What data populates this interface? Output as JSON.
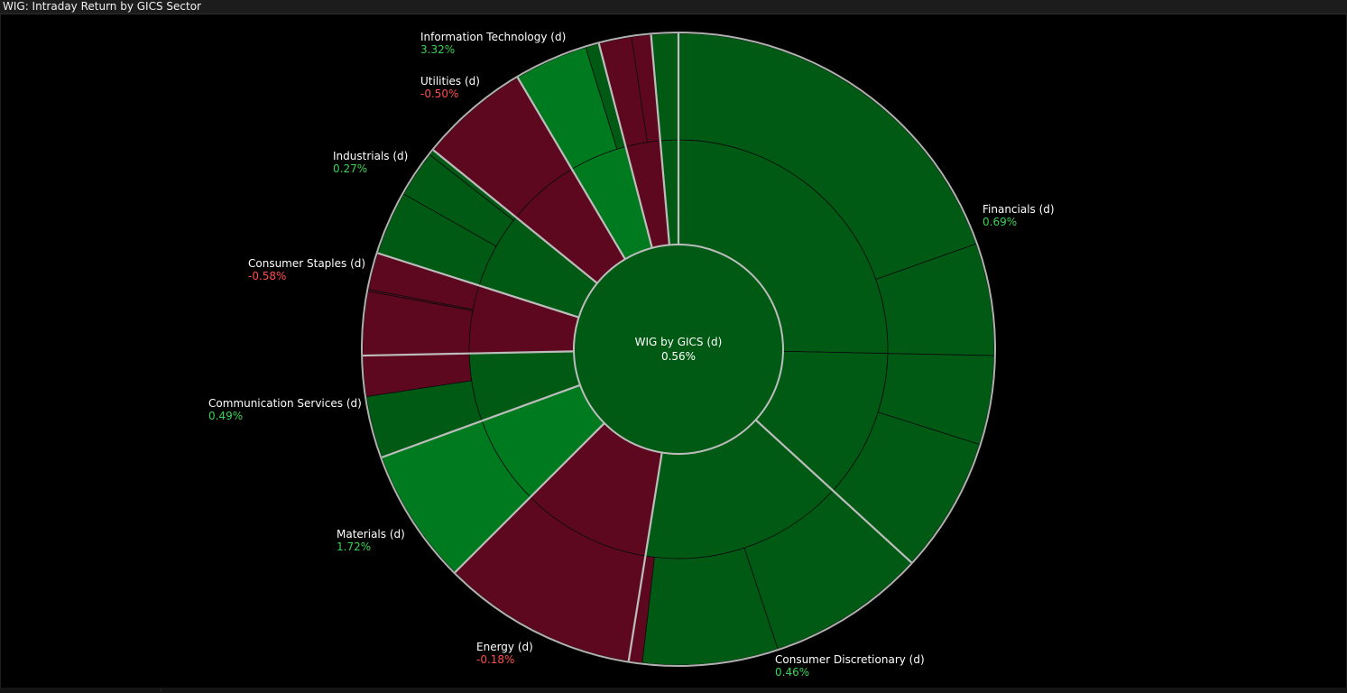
{
  "window": {
    "title": "WIG: Intraday Return by GICS Sector"
  },
  "colors": {
    "positive": "#005a14",
    "positive_strong": "#007a1e",
    "negative": "#5e0820",
    "positive_text": "#39d353",
    "negative_text": "#ff4d4d",
    "center_text": "#ffffff"
  },
  "chart_data": {
    "type": "sunburst",
    "title": "WIG: Intraday Return by GICS Sector",
    "center": {
      "label": "WIG by GICS (d)",
      "value": "0.56%",
      "return": 0.56
    },
    "sectors": [
      {
        "name": "Financials (d)",
        "value_text": "0.69%",
        "return": 0.69,
        "weight": 37.2,
        "mid": [
          {
            "w": 25.6,
            "r": 0.5
          },
          {
            "w": 11.6,
            "r": 0.4
          }
        ],
        "outer": [
          {
            "w": 19.8,
            "r": 0.4
          },
          {
            "w": 5.8,
            "r": 0.5
          },
          {
            "w": 4.6,
            "r": 0.3
          },
          {
            "w": 7.0,
            "r": 0.6
          }
        ]
      },
      {
        "name": "Consumer Discretionary (d)",
        "value_text": "0.46%",
        "return": 0.46,
        "weight": 15.9,
        "mid": [
          {
            "w": 15.9,
            "r": 0.5
          }
        ],
        "outer": [
          {
            "w": 8.2,
            "r": 0.6
          },
          {
            "w": 7.0,
            "r": 0.4
          },
          {
            "w": 0.7,
            "r": -0.3
          }
        ]
      },
      {
        "name": "Energy (d)",
        "value_text": "-0.18%",
        "return": -0.18,
        "weight": 10.1,
        "mid": [
          {
            "w": 10.1,
            "r": -0.3
          }
        ],
        "outer": [
          {
            "w": 10.1,
            "r": -0.3
          }
        ]
      },
      {
        "name": "Materials (d)",
        "value_text": "1.72%",
        "return": 1.72,
        "weight": 7.0,
        "mid": [
          {
            "w": 7.0,
            "r": 0.8
          }
        ],
        "outer": [
          {
            "w": 7.0,
            "r": 0.8
          }
        ]
      },
      {
        "name": "Communication Services (d)",
        "value_text": "0.49%",
        "return": 0.49,
        "weight": 5.3,
        "mid": [
          {
            "w": 5.3,
            "r": 0.4
          }
        ],
        "outer": [
          {
            "w": 3.2,
            "r": 0.5
          },
          {
            "w": 2.1,
            "r": -0.4
          }
        ]
      },
      {
        "name": "Consumer Staples (d)",
        "value_text": "-0.58%",
        "return": -0.58,
        "weight": 5.3,
        "mid": [
          {
            "w": 5.3,
            "r": -0.5
          }
        ],
        "outer": [
          {
            "w": 3.3,
            "r": -0.5
          },
          {
            "w": 0.1,
            "r": -0.4
          },
          {
            "w": 1.9,
            "r": -0.5
          }
        ]
      },
      {
        "name": "Industrials (d)",
        "value_text": "0.27%",
        "return": 0.27,
        "weight": 6.0,
        "mid": [
          {
            "w": 6.0,
            "r": 0.3
          }
        ],
        "outer": [
          {
            "w": 3.3,
            "r": 0.3
          },
          {
            "w": 2.4,
            "r": 0.2
          },
          {
            "w": 0.3,
            "r": 0.3
          }
        ]
      },
      {
        "name": "Utilities (d)",
        "value_text": "-0.50%",
        "return": -0.5,
        "weight": 5.7,
        "mid": [
          {
            "w": 5.7,
            "r": -0.5
          }
        ],
        "outer": [
          {
            "w": 5.7,
            "r": -0.5
          }
        ]
      },
      {
        "name": "Information Technology (d)",
        "value_text": "3.32%",
        "return": 3.32,
        "weight": 4.5,
        "mid": [
          {
            "w": 4.5,
            "r": 1.0
          }
        ],
        "outer": [
          {
            "w": 3.8,
            "r": 1.0
          },
          {
            "w": 0.7,
            "r": 0.6
          }
        ]
      },
      {
        "name": "",
        "value_text": "",
        "return": -0.5,
        "weight": 2.7,
        "mid": [
          {
            "w": 2.7,
            "r": -0.5
          }
        ],
        "outer": [
          {
            "w": 1.7,
            "r": -0.5
          },
          {
            "w": 1.0,
            "r": -0.4
          }
        ]
      },
      {
        "name": "",
        "value_text": "",
        "return": 0.4,
        "weight": 1.4,
        "mid": [
          {
            "w": 1.4,
            "r": 0.4
          }
        ],
        "outer": [
          {
            "w": 1.4,
            "r": 0.4
          }
        ]
      }
    ]
  }
}
